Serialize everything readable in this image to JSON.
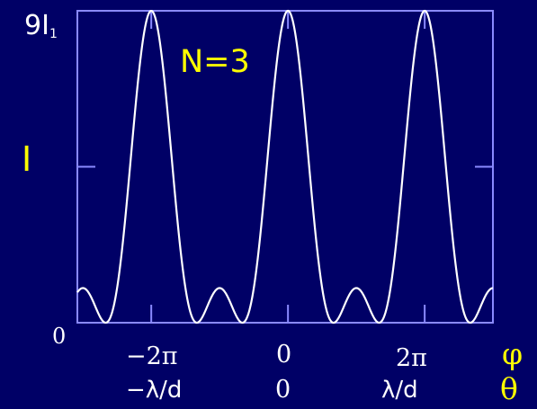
{
  "chart_data": {
    "type": "line",
    "annotation": "N=3",
    "N": 3,
    "ylabel": "I",
    "ytick_top": {
      "main": "9I",
      "sub": "1"
    },
    "ytick_bottom": "0",
    "ylim": [
      0,
      9
    ],
    "xlim": [
      -9.68,
      9.42
    ],
    "x_axis_phi": {
      "symbol": "φ",
      "ticks": [
        "−2π",
        "0",
        "2π"
      ],
      "values": [
        -6.2832,
        0,
        6.2832
      ]
    },
    "x_axis_theta": {
      "symbol": "θ",
      "ticks": [
        "−λ/d",
        "0",
        "λ/d"
      ]
    },
    "series": [
      {
        "formula": "I1 * (sin(N*phi/2)/sin(phi/2))^2",
        "peak_value": 9,
        "secondary_max_value": 1,
        "principal_maxima_phi": [
          -6.2832,
          0,
          6.2832
        ]
      }
    ],
    "colors": {
      "background": "#000066",
      "frame": "#8a8aff",
      "curve": "#ffffff",
      "label": "#ffff00"
    }
  }
}
